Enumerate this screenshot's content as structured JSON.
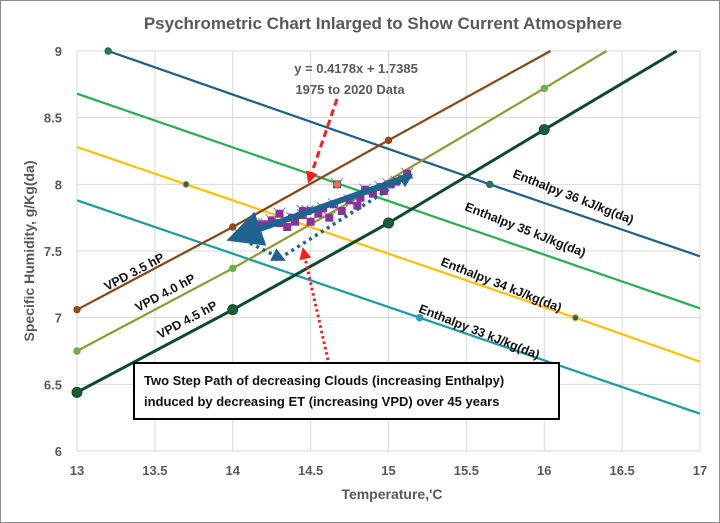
{
  "chart_data": {
    "type": "line",
    "title": "Psychrometric Chart Inlarged to Show Current Atmosphere",
    "xlabel": "Temperature,'C",
    "ylabel": "Specific Humidity, g/Kg(da)",
    "xlim": [
      13,
      17
    ],
    "ylim": [
      6,
      9
    ],
    "grid": true,
    "x_ticks": [
      "13",
      "13.5",
      "14",
      "14.5",
      "15",
      "15.5",
      "16",
      "16.5",
      "17"
    ],
    "y_ticks": [
      "6",
      "6.5",
      "7",
      "7.5",
      "8",
      "8.5",
      "9"
    ],
    "series": [
      {
        "name": "Enthalpy 36 kJ/kg(da)",
        "color": "#1f5f8b",
        "points": [
          [
            13.2,
            9.0
          ],
          [
            15.65,
            8.0
          ],
          [
            17,
            7.46
          ]
        ],
        "markers": [
          [
            13.2,
            9.0
          ],
          [
            15.65,
            8.0
          ]
        ],
        "marker_color": "#2e7d32"
      },
      {
        "name": "Enthalpy 35 kJ/kg(da)",
        "color": "#22b14c",
        "points": [
          [
            13,
            8.68
          ],
          [
            17,
            7.07
          ]
        ],
        "markers": []
      },
      {
        "name": "Enthalpy 34 kJ/kg(da)",
        "color": "#ffc000",
        "points": [
          [
            13,
            8.28
          ],
          [
            13.7,
            8.0
          ],
          [
            16.2,
            7.0
          ],
          [
            17,
            6.67
          ]
        ],
        "markers": [
          [
            13.7,
            8.0
          ],
          [
            16.2,
            7.0
          ]
        ],
        "marker_color": "#1f5f8b"
      },
      {
        "name": "Enthalpy 33 kJ/kg(da)",
        "color": "#1a9ba8",
        "points": [
          [
            13,
            7.88
          ],
          [
            15.2,
            7.0
          ],
          [
            17,
            6.28
          ]
        ],
        "markers": [
          [
            15.2,
            7.0
          ]
        ],
        "marker_color": "#2e9bd6"
      },
      {
        "name": "VPD 3.5 hP",
        "color": "#8b4513",
        "points": [
          [
            13,
            7.06
          ],
          [
            14,
            7.68
          ],
          [
            15,
            8.33
          ],
          [
            16.04,
            9.0
          ]
        ],
        "markers": [
          [
            13,
            7.06
          ],
          [
            14,
            7.68
          ],
          [
            15,
            8.33
          ]
        ],
        "marker_color": "#a0441a"
      },
      {
        "name": "VPD 4.0 hP",
        "color": "#8d9a2e",
        "points": [
          [
            13,
            6.75
          ],
          [
            14,
            7.37
          ],
          [
            15,
            8.03
          ],
          [
            16,
            8.72
          ],
          [
            16.4,
            9.0
          ]
        ],
        "markers": [
          [
            13,
            6.75
          ],
          [
            14,
            7.37
          ],
          [
            16,
            8.72
          ]
        ],
        "marker_color": "#5cb85c"
      },
      {
        "name": "VPD 4.5 hP",
        "color": "#0b4a2e",
        "points": [
          [
            13,
            6.44
          ],
          [
            14,
            7.06
          ],
          [
            15,
            7.71
          ],
          [
            16,
            8.41
          ],
          [
            16.85,
            9.0
          ]
        ],
        "markers": [
          [
            13,
            6.44
          ],
          [
            14,
            7.06
          ],
          [
            15,
            7.71
          ],
          [
            16,
            8.41
          ]
        ],
        "marker_color": "#1a5e34"
      },
      {
        "name": "1975 to 2020 Data",
        "color": "#8e2f9a",
        "type": "scatter",
        "points": [
          [
            14.05,
            7.62
          ],
          [
            14.15,
            7.66
          ],
          [
            14.2,
            7.7
          ],
          [
            14.25,
            7.73
          ],
          [
            14.3,
            7.78
          ],
          [
            14.3,
            7.71
          ],
          [
            14.35,
            7.68
          ],
          [
            14.38,
            7.75
          ],
          [
            14.4,
            7.72
          ],
          [
            14.45,
            7.77
          ],
          [
            14.48,
            7.8
          ],
          [
            14.5,
            7.72
          ],
          [
            14.55,
            7.78
          ],
          [
            14.58,
            7.82
          ],
          [
            14.62,
            7.75
          ],
          [
            14.65,
            7.85
          ],
          [
            14.7,
            7.8
          ],
          [
            14.75,
            7.88
          ],
          [
            14.8,
            7.84
          ],
          [
            14.82,
            7.9
          ],
          [
            14.85,
            7.96
          ],
          [
            14.9,
            7.93
          ],
          [
            14.95,
            7.98
          ],
          [
            15.0,
            8.0
          ],
          [
            15.05,
            8.02
          ],
          [
            15.12,
            8.08
          ],
          [
            14.67,
            8.0
          ],
          [
            14.97,
            7.95
          ],
          [
            14.45,
            7.8
          ],
          [
            14.15,
            7.7
          ]
        ]
      }
    ],
    "trendline": {
      "equation": "y = 0.4178x + 1.7385",
      "x": [
        14.03,
        15.15
      ]
    },
    "annotations": {
      "trend_equation": "y = 0.4178x + 1.7385",
      "trend_note": "1975 to 2020 Data",
      "box_line1": "Two Step Path of decreasing Clouds (increasing Enthalpy)",
      "box_line2": "induced by decreasing ET (increasing VPD) over 45 years"
    },
    "line_labels": {
      "e36": "Enthalpy 36 kJ/kg(da)",
      "e35": "Enthalpy 35 kJ/kg(da)",
      "e34": "Enthalpy 34 kJ/kg(da)",
      "e33": "Enthalpy 33 kJ/kg(da)",
      "v35": "VPD 3.5 hP",
      "v40": "VPD 4.0 hP",
      "v45": "VPD 4.5 hP"
    },
    "two_step_path": [
      [
        14.03,
        7.62
      ],
      [
        14.3,
        7.45
      ],
      [
        15.12,
        8.05
      ]
    ]
  }
}
